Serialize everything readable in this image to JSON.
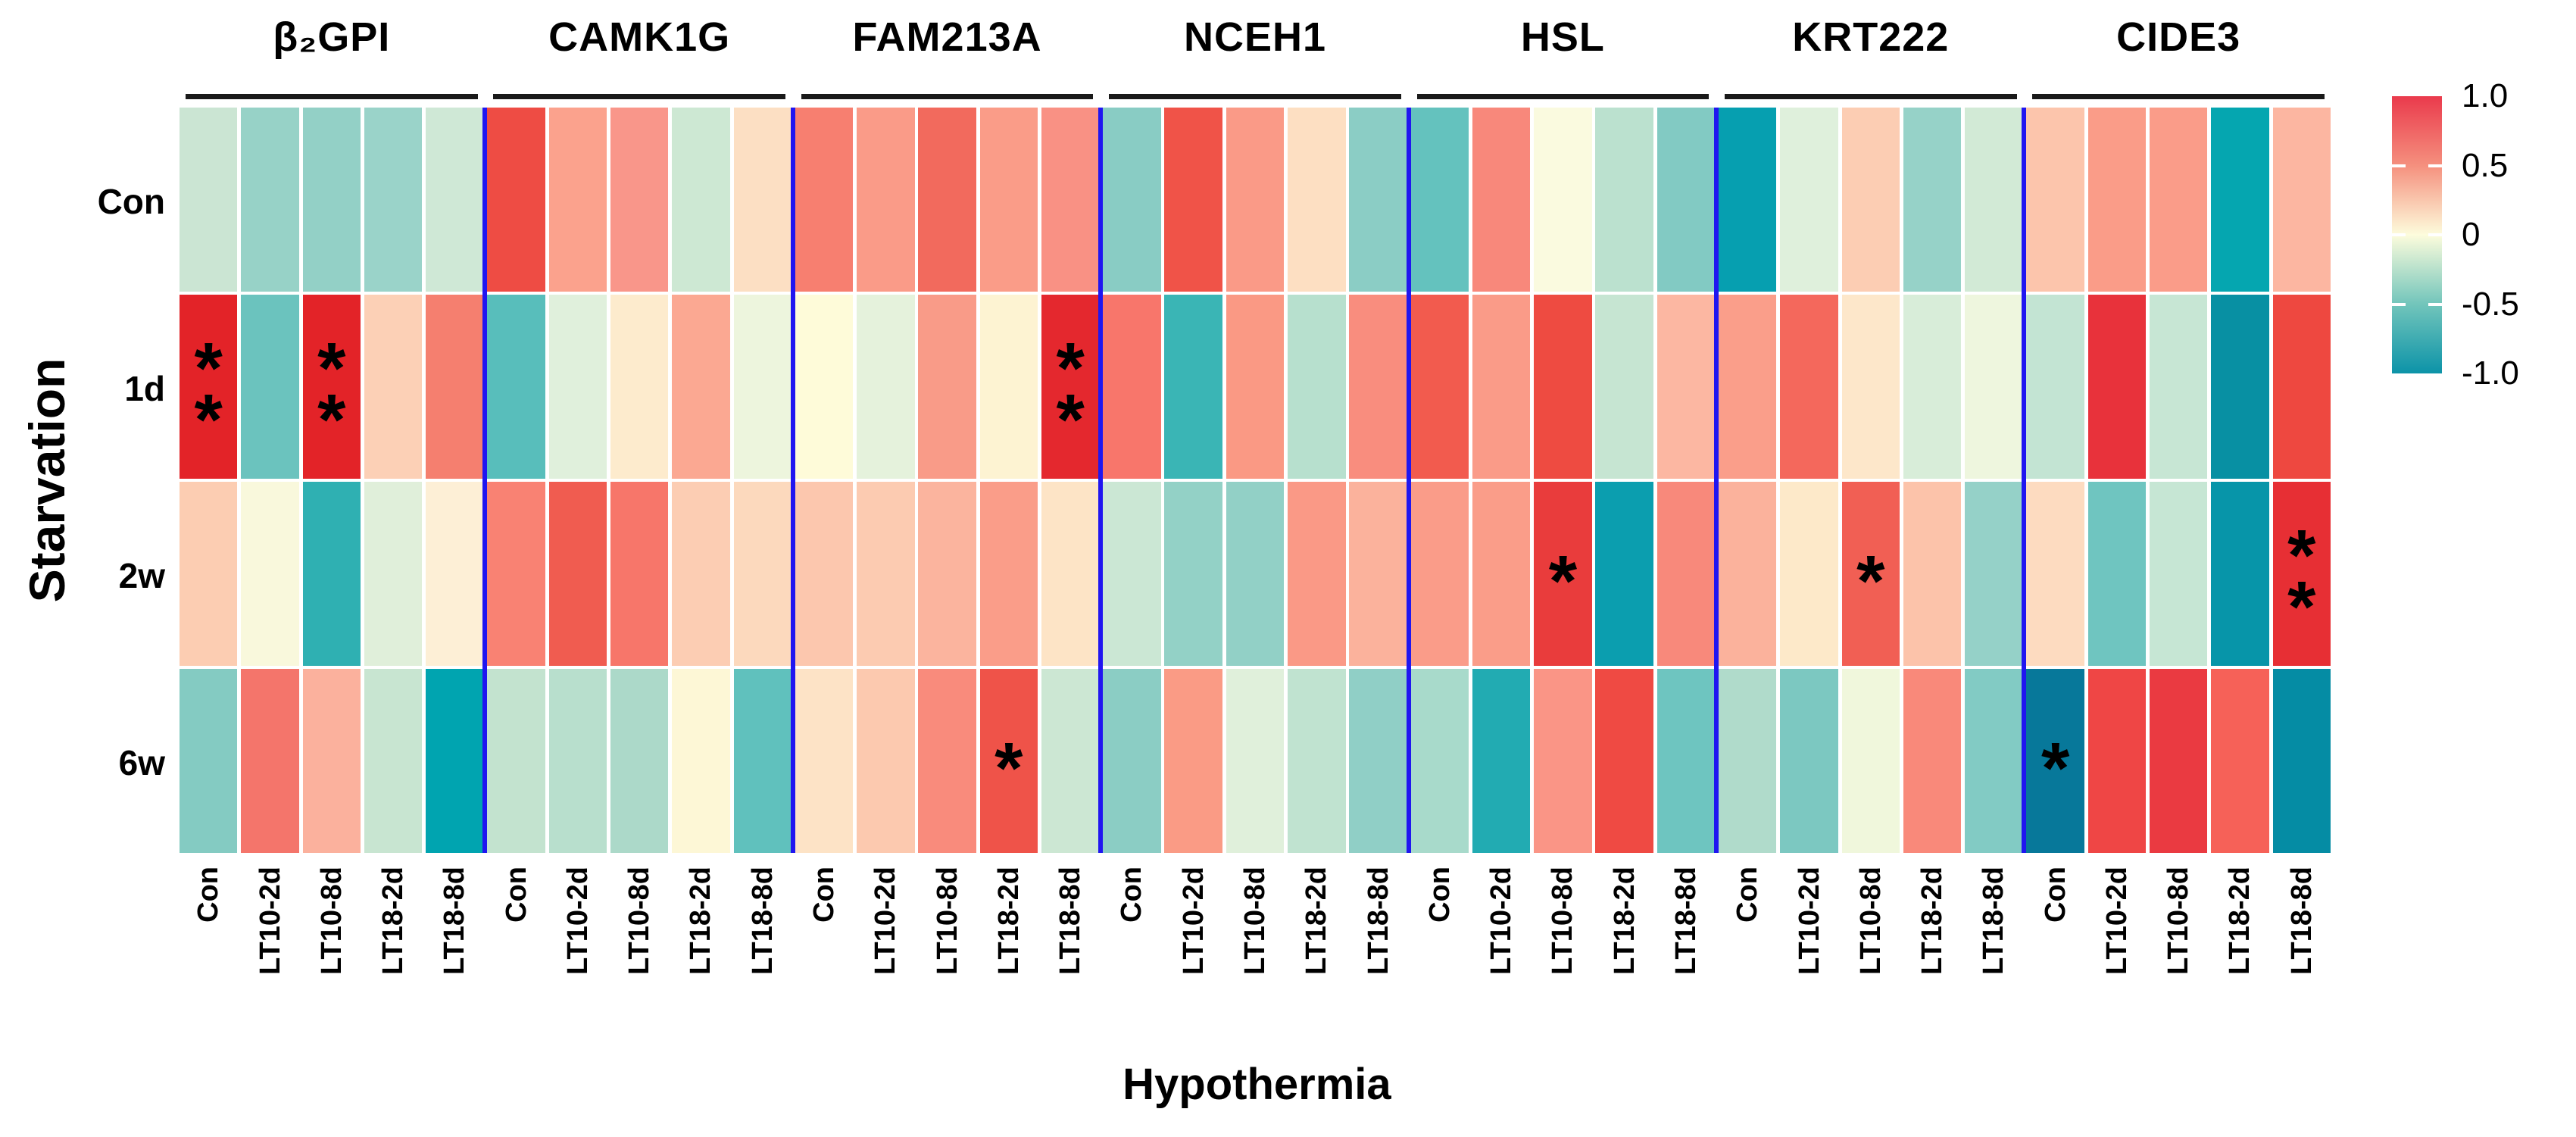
{
  "axes": {
    "y_title": "Starvation",
    "x_title": "Hypothermia"
  },
  "legend": {
    "ticks": [
      "1.0",
      "0.5",
      "0",
      "-0.5",
      "-1.0"
    ],
    "gradient": [
      "#EA3A4C",
      "#F5907E",
      "#FDFCDC",
      "#72C5BB",
      "#0C93A8"
    ]
  },
  "separator_color": "#2016f0",
  "star_char": "*",
  "chart_data": {
    "type": "heatmap",
    "x_axis_title": "Hypothermia",
    "y_axis_title": "Starvation",
    "row_labels": [
      "Con",
      "1d",
      "2w",
      "6w"
    ],
    "col_labels_per_group": [
      "Con",
      "LT10-2d",
      "LT10-8d",
      "LT18-2d",
      "LT18-8d"
    ],
    "colorscale": {
      "domain": [
        -1,
        0,
        1
      ],
      "range": [
        "#0C93A8",
        "#FDFCDC",
        "#EA3A4C"
      ],
      "ticks": [
        1.0,
        0.5,
        0,
        -0.5,
        -1.0
      ]
    },
    "legend_position": "right",
    "groups": [
      {
        "name": "β₂GPI",
        "values": [
          [
            -0.28,
            -0.46,
            -0.48,
            -0.44,
            -0.26
          ],
          [
            1.0,
            -0.6,
            1.0,
            0.28,
            0.58
          ],
          [
            0.3,
            0.0,
            -0.85,
            -0.12,
            0.1
          ],
          [
            -0.52,
            0.62,
            0.42,
            -0.28,
            -1.0
          ]
        ],
        "colors": [
          [
            "#CBE5D3",
            "#97D2C7",
            "#93D0C6",
            "#9AD3C9",
            "#CFE8D6"
          ],
          [
            "#E32328",
            "#6BC3BE",
            "#E32328",
            "#FCD0B6",
            "#F57F6F"
          ],
          [
            "#FCCDB2",
            "#F9F8DC",
            "#2FB0B2",
            "#E0EFDA",
            "#FDEFD6"
          ],
          [
            "#84CBC2",
            "#F4756B",
            "#FBB19D",
            "#C8E5D1",
            "#00A4B0"
          ]
        ],
        "stars": [
          [
            0,
            0,
            0,
            0,
            0
          ],
          [
            2,
            0,
            2,
            0,
            0
          ],
          [
            0,
            0,
            0,
            0,
            0
          ],
          [
            0,
            0,
            0,
            0,
            0
          ]
        ]
      },
      {
        "name": "CAMK1G",
        "values": [
          [
            0.8,
            0.47,
            0.52,
            -0.27,
            0.2
          ],
          [
            -0.65,
            -0.12,
            0.14,
            0.45,
            -0.06
          ],
          [
            0.57,
            0.7,
            0.6,
            0.3,
            0.24
          ],
          [
            -0.3,
            -0.34,
            -0.4,
            0.04,
            -0.62
          ]
        ],
        "colors": [
          [
            "#EE4C44",
            "#FBA28D",
            "#F9968A",
            "#CDE8D3",
            "#FCDFC3"
          ],
          [
            "#58BEBB",
            "#E0F0DC",
            "#FDEBCD",
            "#FBA892",
            "#EDF5DD"
          ],
          [
            "#F98273",
            "#F05C50",
            "#F7766A",
            "#FCCDB3",
            "#FCD9BD"
          ],
          [
            "#C3E3CF",
            "#B8DFCD",
            "#ACD9C9",
            "#FDF7D6",
            "#60C1BD"
          ]
        ],
        "stars": [
          [
            0,
            0,
            0,
            0,
            0
          ],
          [
            0,
            0,
            0,
            0,
            0
          ],
          [
            0,
            0,
            0,
            0,
            0
          ],
          [
            0,
            0,
            0,
            0,
            0
          ]
        ]
      },
      {
        "name": "FAM213A",
        "values": [
          [
            0.58,
            0.5,
            0.65,
            0.5,
            0.53
          ],
          [
            0.02,
            -0.1,
            0.5,
            0.07,
            0.98
          ],
          [
            0.32,
            0.3,
            0.4,
            0.49,
            0.18
          ],
          [
            0.18,
            0.31,
            0.55,
            0.75,
            -0.27
          ]
        ],
        "colors": [
          [
            "#F77F70",
            "#FA9B88",
            "#F26A5D",
            "#FA9C88",
            "#F99184"
          ],
          [
            "#FEFBD9",
            "#E5F2DC",
            "#F99B88",
            "#FDF3D2",
            "#E4282E"
          ],
          [
            "#FCC7AE",
            "#FCCBB1",
            "#FBB49E",
            "#FA9D89",
            "#FDE4C6"
          ],
          [
            "#FDE3C6",
            "#FCC9AF",
            "#F98B7C",
            "#EF5349",
            "#CCE7D3"
          ]
        ],
        "stars": [
          [
            0,
            0,
            0,
            0,
            0
          ],
          [
            0,
            0,
            0,
            0,
            2
          ],
          [
            0,
            0,
            0,
            0,
            0
          ],
          [
            0,
            0,
            0,
            1,
            0
          ]
        ]
      },
      {
        "name": "NCEH1",
        "values": [
          [
            -0.5,
            0.75,
            0.5,
            0.2,
            -0.5
          ],
          [
            0.6,
            -0.8,
            0.5,
            -0.35,
            0.55
          ],
          [
            -0.27,
            -0.47,
            -0.47,
            0.5,
            0.4
          ],
          [
            -0.5,
            0.5,
            -0.12,
            -0.3,
            -0.48
          ]
        ],
        "colors": [
          [
            "#89CCC4",
            "#F05348",
            "#FA9A87",
            "#FDDFC2",
            "#8BCDC5"
          ],
          [
            "#F8766B",
            "#3AB5B5",
            "#FA9984",
            "#B7E0CE",
            "#F98D7E"
          ],
          [
            "#CBE7D4",
            "#93D1C6",
            "#92D0C6",
            "#FA9986",
            "#FBB29C"
          ],
          [
            "#8BCDC4",
            "#FA9B85",
            "#E0F0DB",
            "#C0E3D0",
            "#90CFC6"
          ]
        ],
        "stars": [
          [
            0,
            0,
            0,
            0,
            0
          ],
          [
            0,
            0,
            0,
            0,
            0
          ],
          [
            0,
            0,
            0,
            0,
            0
          ],
          [
            0,
            0,
            0,
            0,
            0
          ]
        ]
      },
      {
        "name": "HSL",
        "values": [
          [
            -0.63,
            0.56,
            -0.02,
            -0.33,
            -0.53
          ],
          [
            0.7,
            0.5,
            0.78,
            -0.28,
            0.38
          ],
          [
            0.5,
            0.5,
            0.85,
            -0.97,
            0.56
          ],
          [
            -0.4,
            -0.9,
            0.52,
            0.78,
            -0.6
          ]
        ],
        "colors": [
          [
            "#64C2BE",
            "#F8887B",
            "#FAFADF",
            "#BBE1CF",
            "#82CAC3"
          ],
          [
            "#F25B4E",
            "#FA9B88",
            "#EE4B41",
            "#C6E5D2",
            "#FCB7A2"
          ],
          [
            "#FA9C89",
            "#FA9D89",
            "#E93C3C",
            "#0B9EAF",
            "#F8897B"
          ],
          [
            "#A8DACB",
            "#22ABB2",
            "#FA9586",
            "#EF4A43",
            "#6EC5C0"
          ]
        ],
        "stars": [
          [
            0,
            0,
            0,
            0,
            0
          ],
          [
            0,
            0,
            0,
            0,
            0
          ],
          [
            0,
            0,
            1,
            0,
            0
          ],
          [
            0,
            0,
            0,
            0,
            0
          ]
        ]
      },
      {
        "name": "KRT222",
        "values": [
          [
            -1.0,
            -0.13,
            0.3,
            -0.46,
            -0.2
          ],
          [
            0.48,
            0.65,
            0.16,
            -0.17,
            -0.06
          ],
          [
            0.4,
            0.15,
            0.7,
            0.33,
            -0.46
          ],
          [
            -0.37,
            -0.55,
            -0.05,
            0.56,
            -0.52
          ]
        ],
        "colors": [
          [
            "#069FB0",
            "#DFF0DC",
            "#FCCDB3",
            "#96D2C8",
            "#D2EAD6"
          ],
          [
            "#FA9E8A",
            "#F4685C",
            "#FDE7CA",
            "#D8EDD9",
            "#EEF6DE"
          ],
          [
            "#FBB29C",
            "#FDE9C9",
            "#F15F54",
            "#FCC3AA",
            "#95D1C8"
          ],
          [
            "#B0DBCB",
            "#7CC8C1",
            "#F0F7DC",
            "#F9897A",
            "#82CBC4"
          ]
        ],
        "stars": [
          [
            0,
            0,
            0,
            0,
            0
          ],
          [
            0,
            0,
            0,
            0,
            0
          ],
          [
            0,
            0,
            1,
            0,
            0
          ],
          [
            0,
            0,
            0,
            0,
            0
          ]
        ]
      },
      {
        "name": "CIDE3",
        "values": [
          [
            0.32,
            0.5,
            0.5,
            -1.0,
            0.38
          ],
          [
            -0.3,
            0.9,
            -0.28,
            -1.0,
            0.78
          ],
          [
            0.22,
            -0.6,
            -0.28,
            -1.0,
            0.95
          ],
          [
            -1.0,
            0.78,
            0.85,
            0.68,
            -1.0
          ]
        ],
        "colors": [
          [
            "#FCC5AC",
            "#FA9C88",
            "#FA9C89",
            "#05A6B0",
            "#FCB6A1"
          ],
          [
            "#C3E4D3",
            "#E8323B",
            "#C7E6D4",
            "#0890A3",
            "#EE4840"
          ],
          [
            "#FDDBC0",
            "#6FC5C0",
            "#C6E6D4",
            "#0795A9",
            "#E72F34"
          ],
          [
            "#07789A",
            "#EF4645",
            "#EA3A41",
            "#F66158",
            "#058CA4"
          ]
        ],
        "stars": [
          [
            0,
            0,
            0,
            0,
            0
          ],
          [
            0,
            0,
            0,
            0,
            0
          ],
          [
            0,
            0,
            0,
            0,
            2
          ],
          [
            1,
            0,
            0,
            0,
            0
          ]
        ]
      }
    ]
  }
}
